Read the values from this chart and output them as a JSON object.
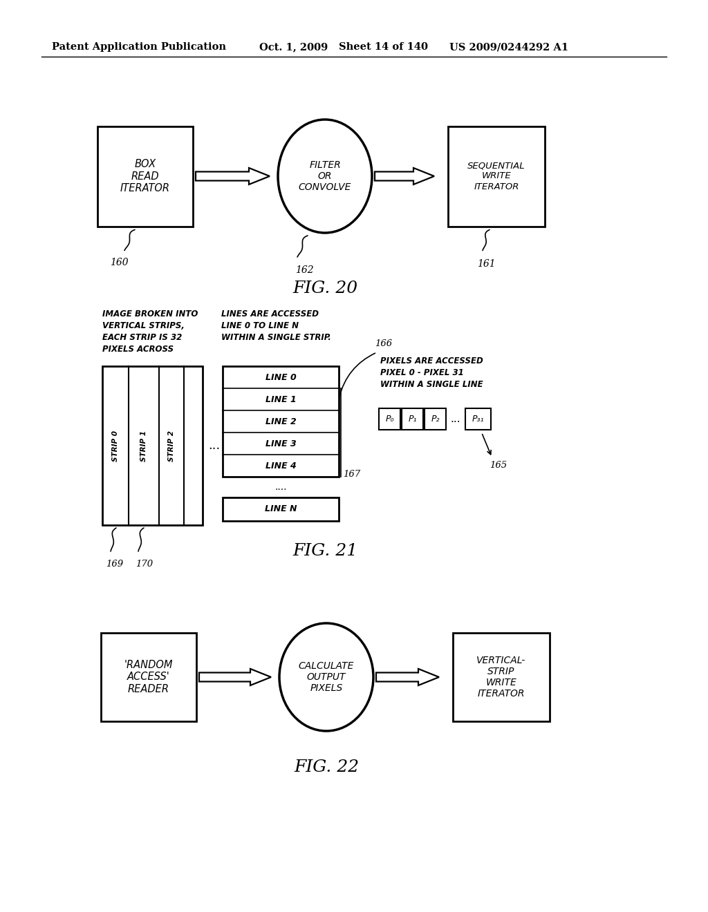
{
  "bg_color": "#ffffff",
  "header_text": "Patent Application Publication",
  "header_date": "Oct. 1, 2009",
  "header_sheet": "Sheet 14 of 140",
  "header_patent": "US 2009/0244292 A1",
  "fig20": {
    "title": "FIG. 20",
    "box1_text": "BOX\nREAD\nITERATOR",
    "box1_label": "160",
    "circle_text": "FILTER\nOR\nCONVOLVE",
    "circle_label": "162",
    "box2_text": "SEQUENTIAL\nWRITE\nITERATOR",
    "box2_label": "161"
  },
  "fig21": {
    "title": "FIG. 21",
    "annotation1_lines": [
      "IMAGE BROKEN INTO",
      "VERTICAL STRIPS,",
      "EACH STRIP IS 32",
      "PIXELS ACROSS"
    ],
    "annotation2_lines": [
      "LINES ARE ACCESSED",
      "LINE 0 TO LINE N",
      "WITHIN A SINGLE STRIP."
    ],
    "annotation3_lines": [
      "PIXELS ARE ACCESSED",
      "PIXEL 0 - PIXEL 31",
      "WITHIN A SINGLE LINE"
    ],
    "strip_labels": [
      "STRIP 0",
      "STRIP 1",
      "STRIP 2"
    ],
    "line_labels": [
      "LINE 0",
      "LINE 1",
      "LINE 2",
      "LINE 3",
      "LINE 4"
    ],
    "label_169": "169",
    "label_170": "170",
    "label_165": "165",
    "label_166": "166",
    "label_167": "167"
  },
  "fig22": {
    "title": "FIG. 22",
    "box1_text": "'RANDOM\nACCESS'\nREADER",
    "circle_text": "CALCULATE\nOUTPUT\nPIXELS",
    "box2_text": "VERTICAL-\nSTRIP\nWRITE\nITERATOR"
  }
}
